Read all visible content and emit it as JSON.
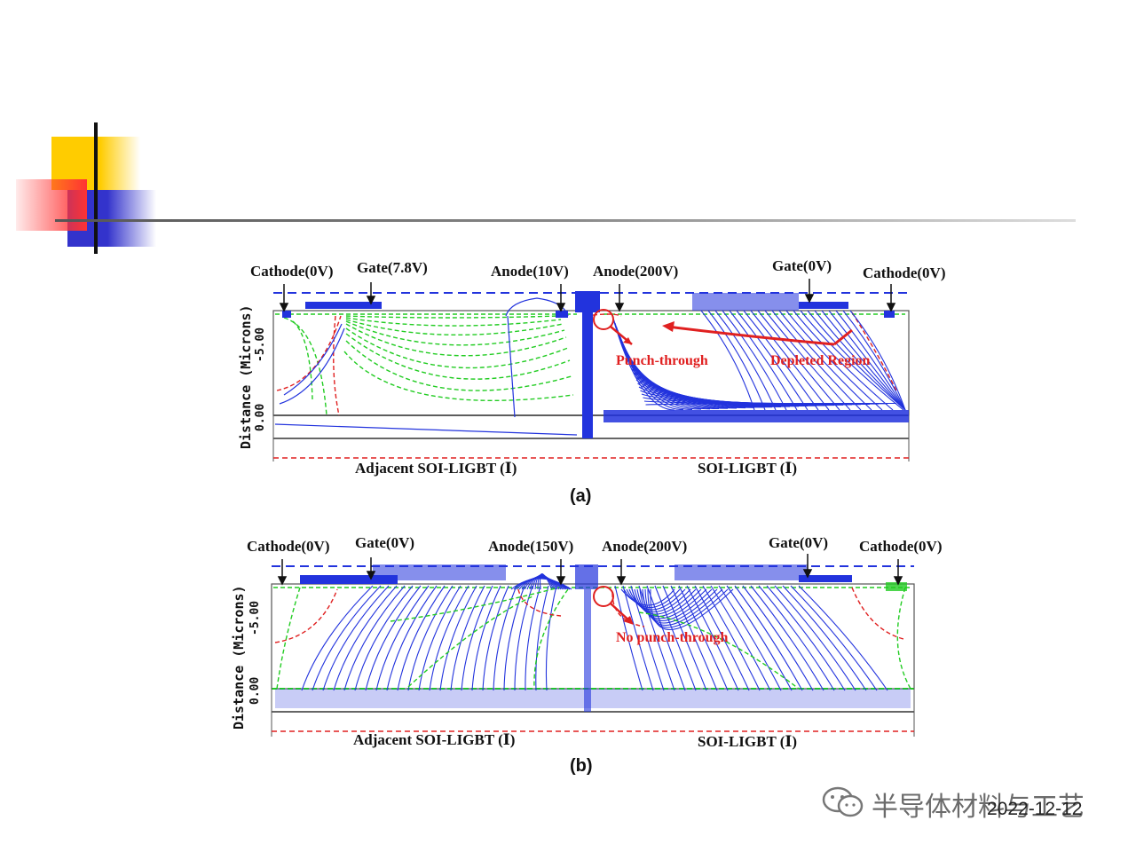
{
  "panel_a": {
    "caption": "(a)",
    "labels": {
      "cathode_left": "Cathode(0V)",
      "gate_left": "Gate(7.8V)",
      "anode_left": "Anode(10V)",
      "anode_right": "Anode(200V)",
      "gate_right": "Gate(0V)",
      "cathode_right": "Cathode(0V)"
    },
    "annotations": {
      "punch": "Punch-through",
      "depleted": "Depleted Region"
    },
    "y_axis": {
      "label": "Distance (Microns)",
      "tick_1": "-5.00",
      "tick_2": "0.00"
    },
    "bottom_left": "Adjacent SOI-LIGBT (Ⅰ)",
    "bottom_right": "SOI-LIGBT (Ⅰ)"
  },
  "panel_b": {
    "caption": "(b)",
    "labels": {
      "cathode_left": "Cathode(0V)",
      "gate_left": "Gate(0V)",
      "anode_left": "Anode(150V)",
      "anode_right": "Anode(200V)",
      "gate_right": "Gate(0V)",
      "cathode_right": "Cathode(0V)"
    },
    "annotations": {
      "punch": "No punch-through"
    },
    "y_axis": {
      "label": "Distance (Microns)",
      "tick_1": "-5.00",
      "tick_2": "0.00"
    },
    "bottom_left": "Adjacent SOI-LIGBT (Ⅰ)",
    "bottom_right": "SOI-LIGBT (Ⅰ)"
  },
  "watermark": {
    "text": "半导体材料与工艺",
    "icon": "wechat-icon"
  },
  "date": "2022-12-12",
  "colors": {
    "equipotential": "#2233dd",
    "depletion_green": "#22cc22",
    "junction_red": "#e02020",
    "slide_yellow": "#ffcc00",
    "slide_blue": "#3333cc",
    "slide_red": "#ff3333"
  }
}
